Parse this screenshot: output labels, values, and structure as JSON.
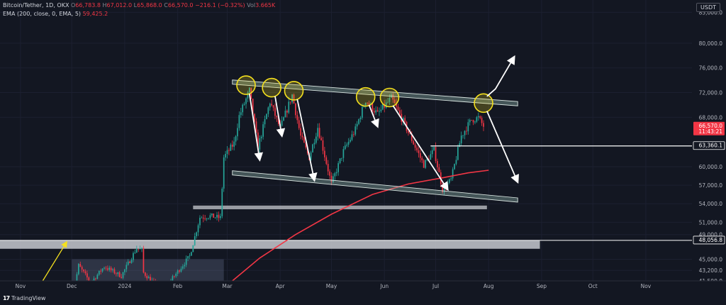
{
  "header": {
    "symbol": "Bitcoin/Tether, 1D, OKX",
    "ohlc": [
      {
        "k": "O",
        "v": "66,783.8"
      },
      {
        "k": "H",
        "v": "67,012.0"
      },
      {
        "k": "L",
        "v": "65,868.0"
      },
      {
        "k": "C",
        "v": "66,570.0"
      }
    ],
    "change": "−216.1 (−0.32%)",
    "volume_label": "Vol",
    "volume": "3.665K",
    "ema_label": "EMA (200, close, 0, EMA, 5)",
    "ema_value": "59,425.2",
    "currency": "USDT"
  },
  "footer": {
    "brand": "TradingView",
    "logo": "17"
  },
  "colors": {
    "background": "#131722",
    "up": "#26a69a",
    "down": "#f23645",
    "ema": "#f23645",
    "zone": "#c7c9cf",
    "circle": "#f5e11e",
    "arrow": "#ffffff",
    "projection_arrow": "#f5e11e"
  },
  "chart_data": {
    "type": "candlestick",
    "symbol": "Bitcoin/Tether",
    "timeframe": "1D",
    "y_axis": {
      "range": [
        41500,
        87000
      ],
      "ticks": [
        "85,000.0",
        "80,000.0",
        "76,000.0",
        "72,000.0",
        "68,000.0",
        "60,000.0",
        "57,000.0",
        "54,000.0",
        "51,000.0",
        "49,000.0",
        "45,000.0",
        "43,200.0",
        "41,500.0"
      ],
      "tick_values": [
        85000,
        80000,
        76000,
        72000,
        68000,
        60000,
        57000,
        54000,
        51000,
        49000,
        45000,
        43200,
        41500
      ]
    },
    "x_axis": {
      "range": [
        "2023-10-20",
        "2024-11-28"
      ],
      "ticks": [
        {
          "label": "Nov",
          "date": "2023-11-01"
        },
        {
          "label": "Dec",
          "date": "2023-12-01"
        },
        {
          "label": "2024",
          "date": "2024-01-01"
        },
        {
          "label": "Feb",
          "date": "2024-02-01"
        },
        {
          "label": "Mar",
          "date": "2024-03-01"
        },
        {
          "label": "Apr",
          "date": "2024-04-01"
        },
        {
          "label": "May",
          "date": "2024-05-01"
        },
        {
          "label": "Jun",
          "date": "2024-06-01"
        },
        {
          "label": "Jul",
          "date": "2024-07-01"
        },
        {
          "label": "Aug",
          "date": "2024-08-01"
        },
        {
          "label": "Sep",
          "date": "2024-09-01"
        },
        {
          "label": "Oct",
          "date": "2024-10-01"
        },
        {
          "label": "Nov",
          "date": "2024-11-01"
        }
      ]
    },
    "price_path": [
      [
        "2023-12-01",
        38200
      ],
      [
        "2023-12-05",
        44000
      ],
      [
        "2023-12-12",
        41200
      ],
      [
        "2023-12-20",
        43800
      ],
      [
        "2023-12-30",
        42300
      ],
      [
        "2024-01-08",
        46800
      ],
      [
        "2024-01-11",
        46500
      ],
      [
        "2024-01-12",
        42800
      ],
      [
        "2024-01-23",
        39800
      ],
      [
        "2024-02-01",
        43000
      ],
      [
        "2024-02-08",
        45500
      ],
      [
        "2024-02-14",
        51800
      ],
      [
        "2024-02-20",
        52000
      ],
      [
        "2024-02-26",
        51700
      ],
      [
        "2024-02-28",
        61500
      ],
      [
        "2024-03-05",
        63800
      ],
      [
        "2024-03-08",
        68200
      ],
      [
        "2024-03-14",
        72300
      ],
      [
        "2024-03-19",
        63200
      ],
      [
        "2024-03-26",
        70500
      ],
      [
        "2024-04-01",
        66200
      ],
      [
        "2024-04-08",
        71600
      ],
      [
        "2024-04-13",
        64900
      ],
      [
        "2024-04-18",
        61500
      ],
      [
        "2024-04-23",
        66400
      ],
      [
        "2024-05-01",
        57200
      ],
      [
        "2024-05-08",
        62500
      ],
      [
        "2024-05-15",
        66000
      ],
      [
        "2024-05-21",
        70800
      ],
      [
        "2024-05-28",
        68500
      ],
      [
        "2024-06-05",
        71100
      ],
      [
        "2024-06-12",
        67300
      ],
      [
        "2024-06-24",
        60300
      ],
      [
        "2024-06-30",
        62700
      ],
      [
        "2024-07-05",
        56300
      ],
      [
        "2024-07-10",
        57900
      ],
      [
        "2024-07-16",
        65000
      ],
      [
        "2024-07-22",
        67600
      ],
      [
        "2024-07-26",
        67900
      ],
      [
        "2024-07-29",
        66570
      ]
    ],
    "ema_200": [
      [
        "2024-03-04",
        41500
      ],
      [
        "2024-03-20",
        45200
      ],
      [
        "2024-04-10",
        49000
      ],
      [
        "2024-05-01",
        52300
      ],
      [
        "2024-05-25",
        55500
      ],
      [
        "2024-06-15",
        57200
      ],
      [
        "2024-07-05",
        58200
      ],
      [
        "2024-07-20",
        59000
      ],
      [
        "2024-08-01",
        59425
      ]
    ],
    "price_labels": [
      {
        "value": 66570,
        "text": "66,570.0",
        "sub": "11:43:21",
        "color": "#f23645"
      },
      {
        "value": 63360.1,
        "text": "63,360.1",
        "color": "#ffffff"
      },
      {
        "value": 48056.8,
        "text": "48,056.8",
        "color": "#ffffff"
      }
    ],
    "annotations": {
      "channel_upper": {
        "from": [
          "2024-03-04",
          73700
        ],
        "to": [
          "2024-08-18",
          70200
        ]
      },
      "channel_lower": {
        "from": [
          "2024-03-04",
          59000
        ],
        "to": [
          "2024-08-18",
          54600
        ]
      },
      "support_zone_upper": {
        "from": "2024-02-10",
        "to": "2024-07-31",
        "top": 53700,
        "bottom": 53100
      },
      "support_zone_lower": {
        "from": "2023-10-20",
        "to": "2024-08-31",
        "top": 48056.8,
        "bottom": 46700
      },
      "accumulation_box": {
        "from": "2023-12-01",
        "to": "2024-02-28",
        "top": 45000,
        "bottom": 41500
      },
      "horizontal_line": {
        "from": "2024-06-28",
        "to": "2024-11-28",
        "value": 63360.1
      },
      "circles": [
        [
          "2024-03-12",
          73200
        ],
        [
          "2024-03-27",
          72800
        ],
        [
          "2024-04-09",
          72300
        ],
        [
          "2024-05-21",
          71300
        ],
        [
          "2024-06-04",
          71200
        ],
        [
          "2024-07-29",
          70300
        ]
      ],
      "down_arrows": [
        [
          [
            "2024-03-14",
            71800
          ],
          [
            "2024-03-20",
            61100
          ]
        ],
        [
          [
            "2024-03-29",
            71400
          ],
          [
            "2024-04-02",
            65000
          ]
        ],
        [
          [
            "2024-04-11",
            70900
          ],
          [
            "2024-04-21",
            57800
          ]
        ],
        [
          [
            "2024-05-23",
            70000
          ],
          [
            "2024-05-28",
            66500
          ]
        ],
        [
          [
            "2024-06-06",
            69900
          ],
          [
            "2024-07-08",
            56300
          ]
        ],
        [
          [
            "2024-07-31",
            69000
          ],
          [
            "2024-08-18",
            57500
          ]
        ]
      ],
      "up_arrow": [
        [
          "2024-07-31",
          71400
        ],
        [
          "2024-08-05",
          72600
        ],
        [
          "2024-08-16",
          77800
        ]
      ],
      "projection_arrow": [
        [
          "2023-11-14",
          41500
        ],
        [
          "2023-11-28",
          47800
        ]
      ]
    }
  }
}
